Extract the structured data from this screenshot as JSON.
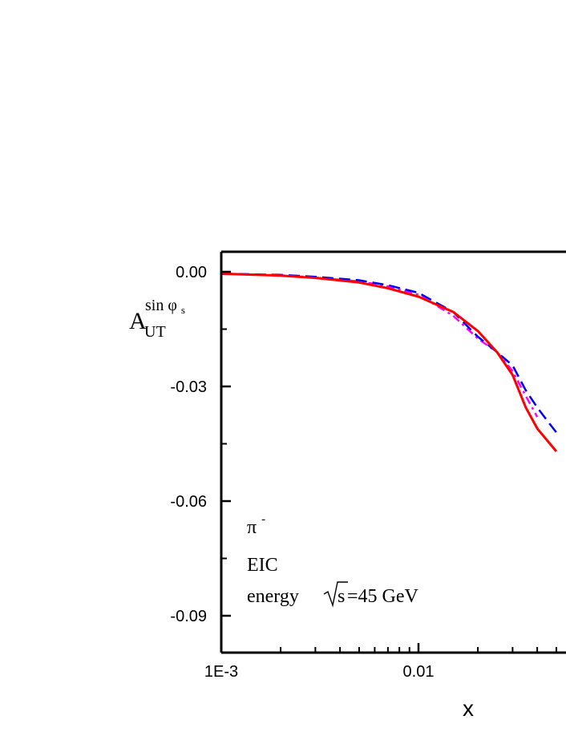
{
  "chart_data": {
    "type": "line",
    "xscale": "log",
    "xlim": [
      0.001,
      0.05
    ],
    "ylim": [
      -0.1,
      0.005
    ],
    "xlabel": "x",
    "ylabel_main": "A",
    "ylabel_sub": "UT",
    "ylabel_sup": "sin φ",
    "ylabel_sup_sub": "s",
    "x_ticks": [
      {
        "value": 0.001,
        "label": "1E-3"
      },
      {
        "value": 0.01,
        "label": "0.01"
      }
    ],
    "y_ticks": [
      {
        "value": 0.0,
        "label": "0.00"
      },
      {
        "value": -0.03,
        "label": "-0.03"
      },
      {
        "value": -0.06,
        "label": "-0.06"
      },
      {
        "value": -0.09,
        "label": "-0.09"
      }
    ],
    "annotations": {
      "particle": "π",
      "particle_sup": "-",
      "experiment": "EIC",
      "energy_prefix": "energy",
      "energy_sqrt": "s",
      "energy_suffix": " =45 GeV"
    },
    "series": [
      {
        "style": "solid",
        "color": "#ff0000",
        "x": [
          0.001,
          0.002,
          0.003,
          0.005,
          0.007,
          0.01,
          0.015,
          0.02,
          0.025,
          0.03,
          0.035,
          0.04,
          0.05
        ],
        "y": [
          -0.0005,
          -0.001,
          -0.0016,
          -0.0028,
          -0.0043,
          -0.0065,
          -0.0105,
          -0.0155,
          -0.021,
          -0.027,
          -0.0355,
          -0.041,
          -0.047
        ]
      },
      {
        "style": "dash",
        "color": "#0000ff",
        "x": [
          0.001,
          0.002,
          0.003,
          0.005,
          0.007,
          0.01,
          0.015,
          0.02,
          0.025,
          0.03,
          0.035,
          0.04,
          0.045,
          0.05
        ],
        "y": [
          -0.0005,
          -0.0008,
          -0.0013,
          -0.0022,
          -0.0035,
          -0.0055,
          -0.0105,
          -0.017,
          -0.021,
          -0.0245,
          -0.031,
          -0.0355,
          -0.039,
          -0.042
        ]
      },
      {
        "style": "dashdot",
        "color": "#ff00ff",
        "x": [
          0.001,
          0.002,
          0.003,
          0.005,
          0.007,
          0.01,
          0.015,
          0.02,
          0.025,
          0.03,
          0.035,
          0.04
        ],
        "y": [
          -0.0005,
          -0.0009,
          -0.0015,
          -0.0025,
          -0.0038,
          -0.006,
          -0.0115,
          -0.0175,
          -0.021,
          -0.026,
          -0.0325,
          -0.038
        ]
      }
    ]
  }
}
